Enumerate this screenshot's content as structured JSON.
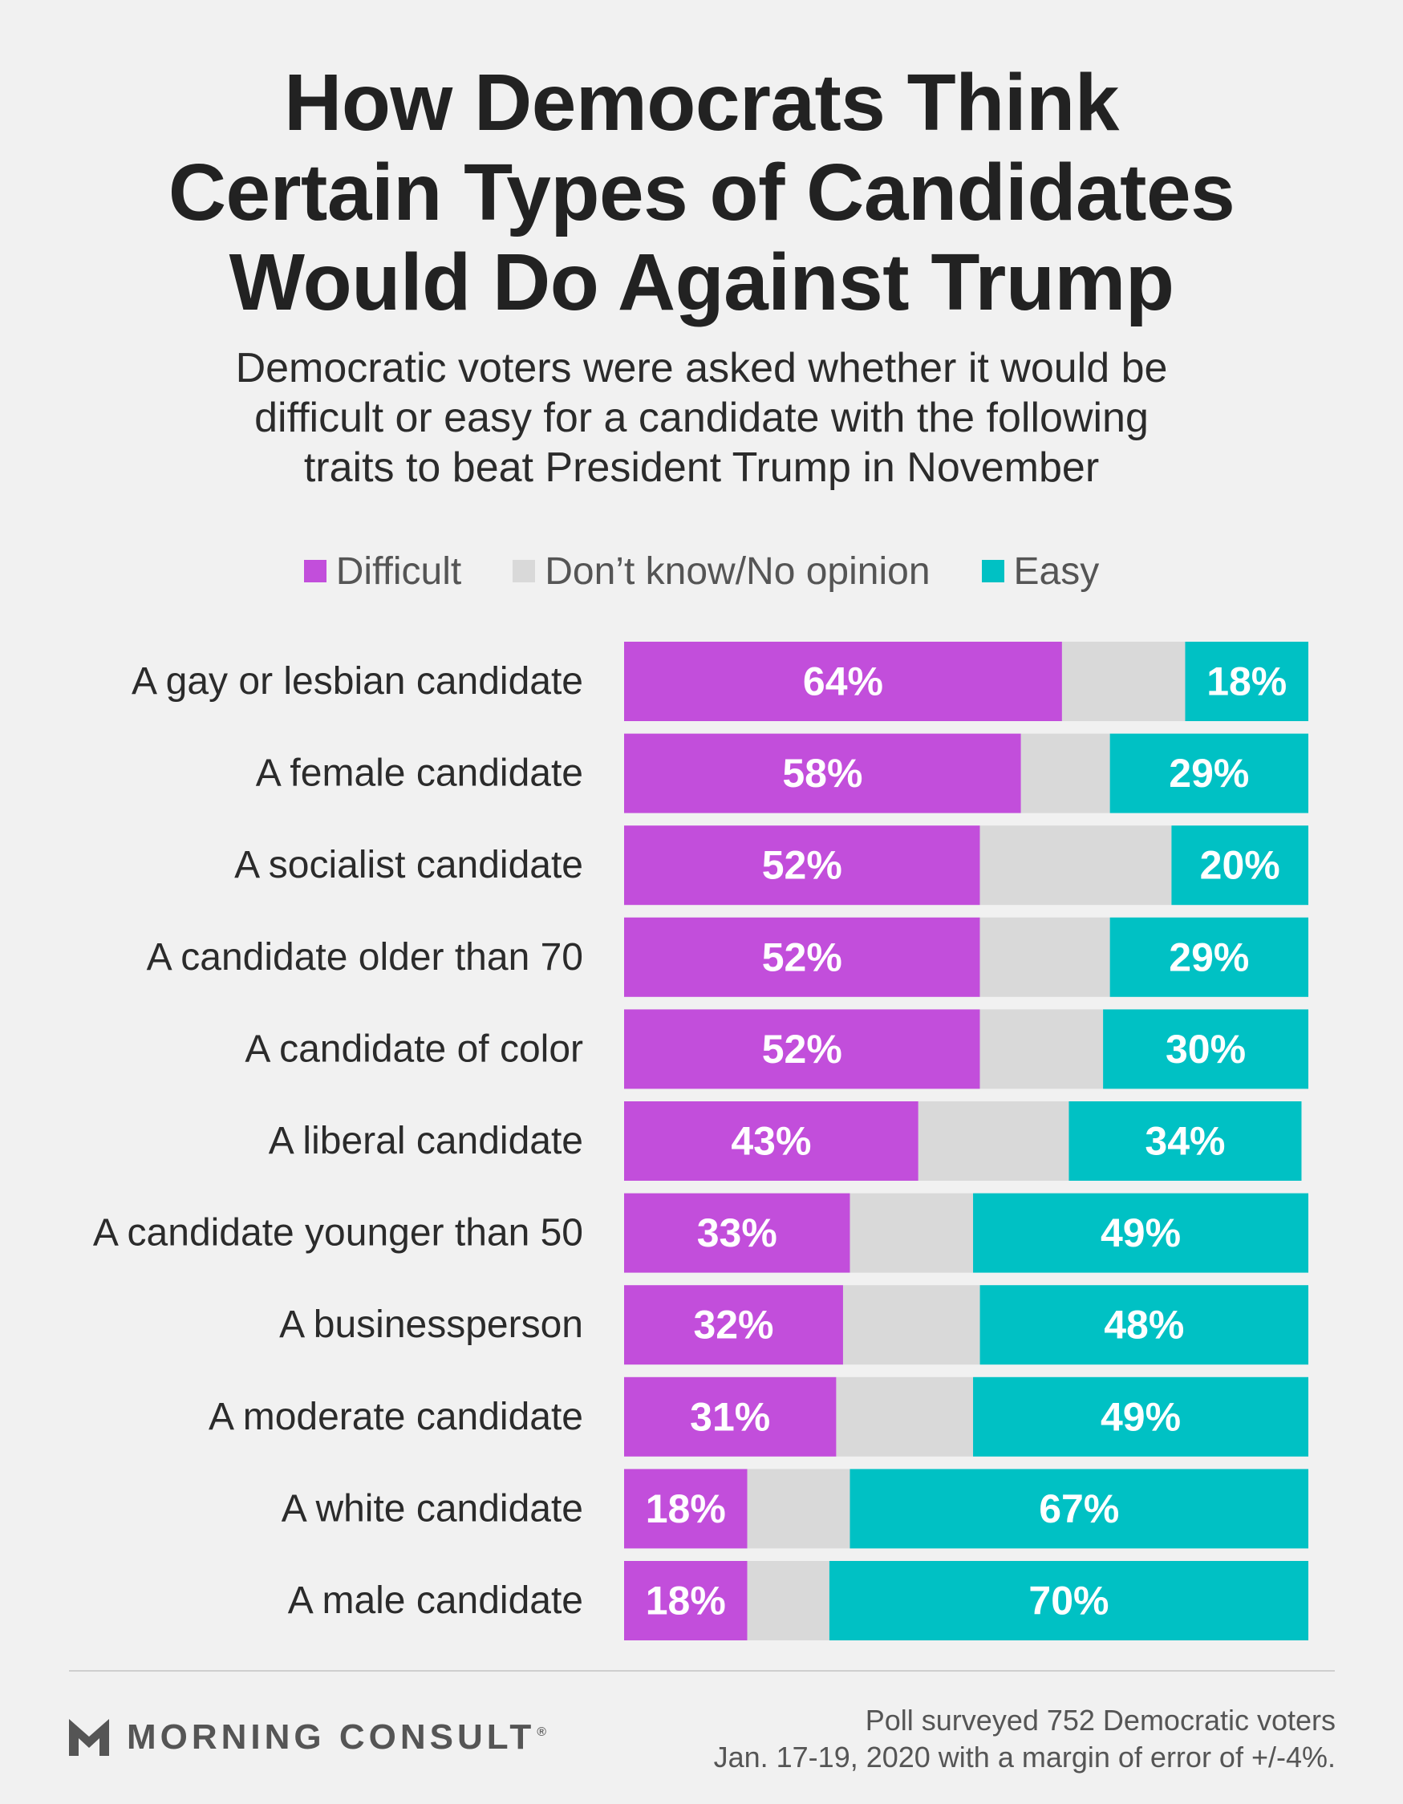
{
  "header": {
    "title_lines": [
      "How Democrats Think",
      "Certain Types of Candidates",
      "Would Do Against Trump"
    ],
    "subtitle_lines": [
      "Democratic voters were asked whether it would be",
      "difficult or easy for a candidate with the following",
      "traits to beat President Trump in November"
    ]
  },
  "legend": {
    "placement": "top-center",
    "items": [
      {
        "label": "Difficult",
        "color": "#c24edb"
      },
      {
        "label": "Don’t know/No opinion",
        "color": "#d9d9d9"
      },
      {
        "label": "Easy",
        "color": "#00c1c4"
      }
    ]
  },
  "chart_data": {
    "type": "bar",
    "orientation": "horizontal",
    "stacked": true,
    "title": "How Democrats Think Certain Types of Candidates Would Do Against Trump",
    "subtitle": "Democratic voters were asked whether it would be difficult or easy for a candidate with the following traits to beat President Trump in November",
    "xlim": [
      0,
      100
    ],
    "grid": false,
    "categories": [
      "A gay or lesbian candidate",
      "A female candidate",
      "A socialist candidate",
      "A candidate older than 70",
      "A candidate of color",
      "A liberal candidate",
      "A candidate younger than 50",
      "A businessperson",
      "A moderate candidate",
      "A white candidate",
      "A male candidate"
    ],
    "series": [
      {
        "name": "Difficult",
        "color": "#c24edb",
        "values": [
          64,
          58,
          52,
          52,
          52,
          43,
          33,
          32,
          31,
          18,
          18
        ]
      },
      {
        "name": "Don’t know/No opinion",
        "color": "#d9d9d9",
        "values": [
          18,
          13,
          28,
          19,
          18,
          22,
          18,
          20,
          20,
          15,
          12
        ]
      },
      {
        "name": "Easy",
        "color": "#00c1c4",
        "values": [
          18,
          29,
          20,
          29,
          30,
          34,
          49,
          48,
          49,
          67,
          70
        ]
      }
    ],
    "value_labels": {
      "Difficult": [
        "64%",
        "58%",
        "52%",
        "52%",
        "52%",
        "43%",
        "33%",
        "32%",
        "31%",
        "18%",
        "18%"
      ],
      "Easy": [
        "18%",
        "29%",
        "20%",
        "29%",
        "30%",
        "34%",
        "49%",
        "48%",
        "49%",
        "67%",
        "70%"
      ]
    }
  },
  "footer": {
    "brand": "MORNING CONSULT",
    "registered_mark": "®",
    "note_lines": [
      "Poll surveyed 752 Democratic voters",
      "Jan. 17-19, 2020 with a margin of error of +/-4%."
    ]
  }
}
